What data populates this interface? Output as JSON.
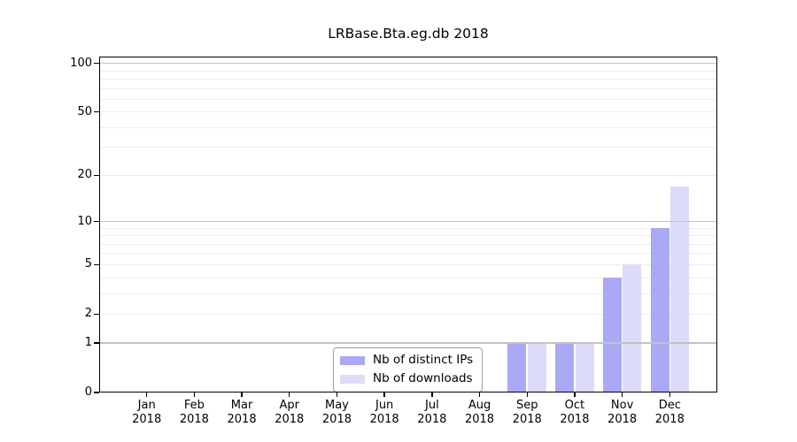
{
  "title": "LRBase.Bta.eg.db 2018",
  "colors": {
    "distinct_ips_bar": "#a9a9f6",
    "downloads_bar": "#dcdcf8",
    "grid_major": "#c2c2c2",
    "grid_minor": "#ececec",
    "axis": "#000000",
    "legend_border": "#9e9e9e",
    "background": "#ffffff"
  },
  "legend": {
    "items": [
      {
        "label": "Nb of distinct IPs",
        "color": "#a9a9f6"
      },
      {
        "label": "Nb of downloads",
        "color": "#dcdcf8"
      }
    ]
  },
  "chart_data": {
    "type": "bar",
    "title": "LRBase.Bta.eg.db 2018",
    "categories": [
      "Jan 2018",
      "Feb 2018",
      "Mar 2018",
      "Apr 2018",
      "May 2018",
      "Jun 2018",
      "Jul 2018",
      "Aug 2018",
      "Sep 2018",
      "Oct 2018",
      "Nov 2018",
      "Dec 2018"
    ],
    "x_tick_month": [
      "Jan",
      "Feb",
      "Mar",
      "Apr",
      "May",
      "Jun",
      "Jul",
      "Aug",
      "Sep",
      "Oct",
      "Nov",
      "Dec"
    ],
    "x_tick_year": "2018",
    "series": [
      {
        "name": "Nb of distinct IPs",
        "color": "#a9a9f6",
        "values": [
          0,
          0,
          0,
          0,
          0,
          0,
          0,
          0,
          1,
          1,
          4,
          9
        ]
      },
      {
        "name": "Nb of downloads",
        "color": "#dcdcf8",
        "values": [
          0,
          0,
          0,
          0,
          0,
          0,
          0,
          0,
          1,
          1,
          5,
          17
        ]
      }
    ],
    "xlabel": "",
    "ylabel": "",
    "yscale": "log1p",
    "ylim": [
      0,
      110
    ],
    "y_ticks": [
      0,
      1,
      2,
      5,
      10,
      20,
      50,
      100
    ],
    "y_minor_gridlines": [
      2,
      3,
      4,
      5,
      6,
      7,
      8,
      9,
      20,
      30,
      40,
      50,
      60,
      70,
      80,
      90
    ],
    "y_major_gridlines": [
      1,
      10,
      100
    ],
    "grid": true,
    "legend_position": "lower center-left"
  }
}
